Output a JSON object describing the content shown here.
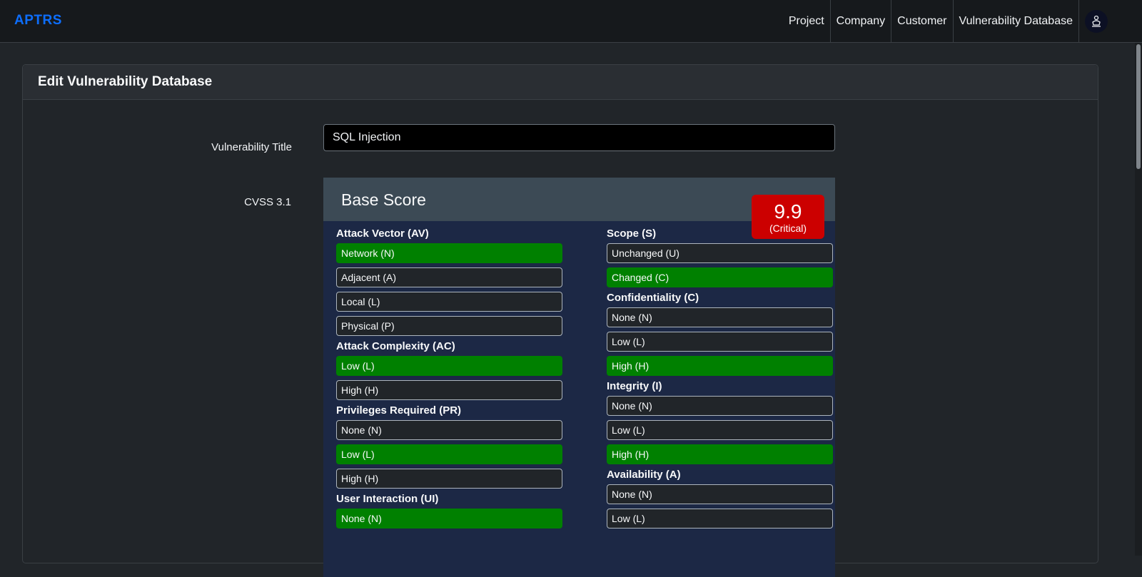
{
  "navbar": {
    "brand": "APTRS",
    "items": [
      "Project",
      "Company",
      "Customer",
      "Vulnerability Database"
    ]
  },
  "card": {
    "title": "Edit Vulnerability Database"
  },
  "form": {
    "title_label": "Vulnerability Title",
    "title_value": "SQL Injection",
    "cvss_label": "CVSS 3.1"
  },
  "cvss": {
    "heading": "Base Score",
    "score": "9.9",
    "severity": "(Critical)",
    "colors": {
      "selected": "#008000",
      "critical": "#cc0000"
    },
    "left_metrics": [
      {
        "title": "Attack Vector (AV)",
        "options": [
          "Network (N)",
          "Adjacent (A)",
          "Local (L)",
          "Physical (P)"
        ],
        "selected": 0
      },
      {
        "title": "Attack Complexity (AC)",
        "options": [
          "Low (L)",
          "High (H)"
        ],
        "selected": 0
      },
      {
        "title": "Privileges Required (PR)",
        "options": [
          "None (N)",
          "Low (L)",
          "High (H)"
        ],
        "selected": 1
      },
      {
        "title": "User Interaction (UI)",
        "options": [
          "None (N)"
        ],
        "selected": 0
      }
    ],
    "right_metrics": [
      {
        "title": "Scope (S)",
        "options": [
          "Unchanged (U)",
          "Changed (C)"
        ],
        "selected": 1
      },
      {
        "title": "Confidentiality (C)",
        "options": [
          "None (N)",
          "Low (L)",
          "High (H)"
        ],
        "selected": 2
      },
      {
        "title": "Integrity (I)",
        "options": [
          "None (N)",
          "Low (L)",
          "High (H)"
        ],
        "selected": 2
      },
      {
        "title": "Availability (A)",
        "options": [
          "None (N)",
          "Low (L)"
        ],
        "selected": -1
      }
    ]
  }
}
